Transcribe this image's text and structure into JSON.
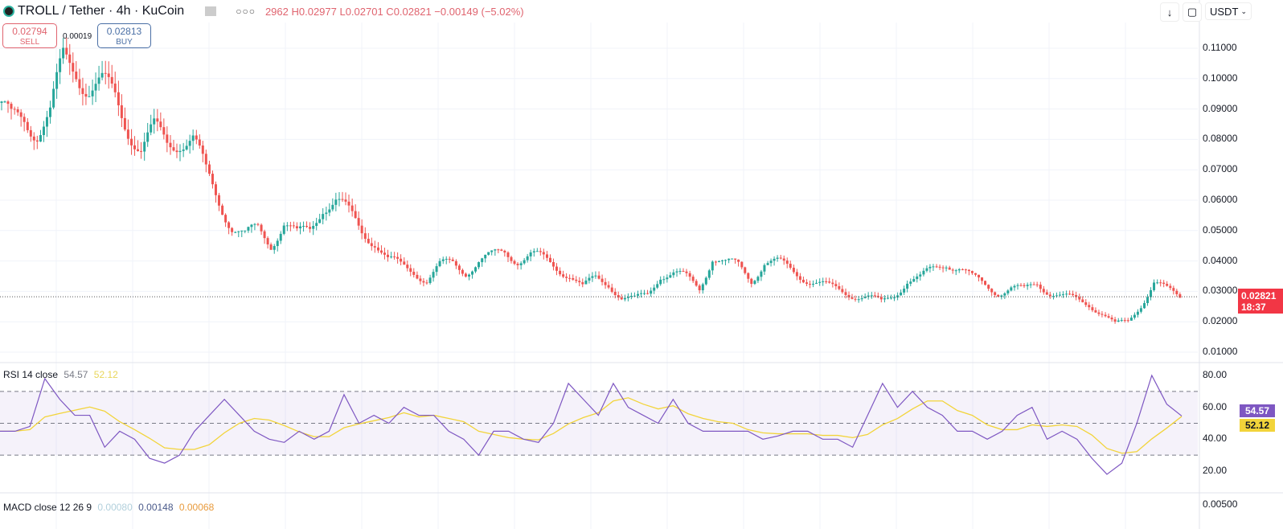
{
  "header": {
    "symbol": "TROLL / Tether · 4h · KuCoin",
    "ohlc": "2962 H0.02977 L0.02701 C0.02821 −0.00149 (−5.02%)",
    "more_icon": "ellipsis-icon"
  },
  "trade": {
    "sell_price": "0.02794",
    "sell_label": "SELL",
    "buy_price": "0.02813",
    "buy_label": "BUY",
    "spread": "0.00019"
  },
  "toolbar": {
    "currency": "USDT",
    "download_icon": "arrow-down-icon",
    "fullscreen_icon": "fullscreen-icon"
  },
  "price_axis": {
    "ticks": [
      "0.11000",
      "0.10000",
      "0.09000",
      "0.08000",
      "0.07000",
      "0.06000",
      "0.05000",
      "0.04000",
      "0.03000",
      "0.02000",
      "0.01000"
    ]
  },
  "last_price": {
    "value": "0.02821",
    "countdown": "18:37",
    "color": "#f23645"
  },
  "rsi": {
    "label": "RSI 14 close",
    "value": "54.57",
    "ma_value": "52.12",
    "ticks": [
      "80.00",
      "60.00",
      "40.00",
      "20.00"
    ],
    "line_color": "#7e57c2",
    "ma_color": "#f2d43a"
  },
  "macd": {
    "label": "MACD close 12 26 9",
    "v1": "0.00080",
    "v2": "0.00148",
    "v3": "0.00068",
    "tick": "0.00500"
  },
  "chart_data": [
    {
      "type": "candlestick",
      "ylim": [
        0.01,
        0.11
      ],
      "grid": true,
      "up_color": "#26a69a",
      "down_color": "#ef5350",
      "close": [
        0.092,
        0.085,
        0.087,
        0.084,
        0.088,
        0.105,
        0.104,
        0.098,
        0.097,
        0.093,
        0.085,
        0.077,
        0.082,
        0.079,
        0.081,
        0.08,
        0.068,
        0.06,
        0.052,
        0.048,
        0.05,
        0.046,
        0.053,
        0.048,
        0.05,
        0.059,
        0.06,
        0.055,
        0.05,
        0.047,
        0.04,
        0.038,
        0.037,
        0.034,
        0.038,
        0.039,
        0.037,
        0.04,
        0.041,
        0.043,
        0.041,
        0.042,
        0.04,
        0.038,
        0.036,
        0.031,
        0.034,
        0.033,
        0.028,
        0.027,
        0.029,
        0.036,
        0.036,
        0.034,
        0.031,
        0.042,
        0.039,
        0.038,
        0.034,
        0.04,
        0.039,
        0.037,
        0.035,
        0.033,
        0.031,
        0.03,
        0.029,
        0.028,
        0.026,
        0.029,
        0.034,
        0.034,
        0.037,
        0.04,
        0.038,
        0.034,
        0.032,
        0.03,
        0.031,
        0.03,
        0.033,
        0.03,
        0.028,
        0.027,
        0.026,
        0.023,
        0.019,
        0.02,
        0.026,
        0.033,
        0.03,
        0.02821
      ]
    },
    {
      "type": "line",
      "ylim": [
        10,
        85
      ],
      "bands": [
        30,
        50,
        70
      ],
      "rsi": [
        45,
        45,
        48,
        78,
        65,
        55,
        55,
        35,
        45,
        40,
        28,
        25,
        30,
        45,
        55,
        65,
        55,
        45,
        40,
        38,
        45,
        40,
        45,
        68,
        50,
        55,
        50,
        60,
        55,
        55,
        45,
        40,
        30,
        45,
        45,
        40,
        38,
        50,
        75,
        65,
        55,
        75,
        60,
        55,
        50,
        65,
        50,
        45,
        45,
        45,
        45,
        40,
        42,
        45,
        45,
        40,
        40,
        35,
        55,
        75,
        60,
        70,
        60,
        55,
        45,
        45,
        40,
        45,
        55,
        60,
        40,
        45,
        40,
        28,
        18,
        25,
        50,
        80,
        62,
        54.57
      ]
    }
  ]
}
